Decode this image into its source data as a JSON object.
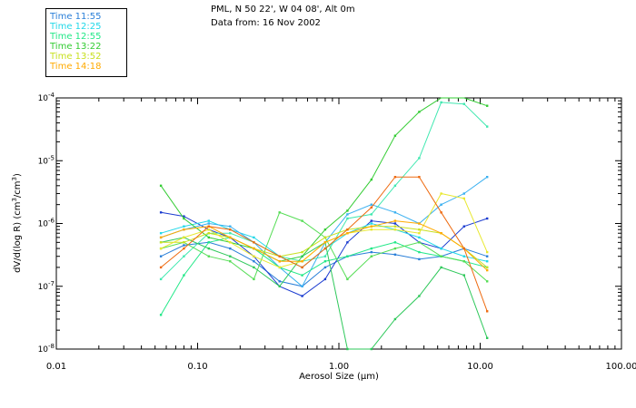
{
  "header": {
    "site": "PML, N 50 22', W 04 08', Alt 0m",
    "date": "Data from: 16 Nov 2002"
  },
  "chart_data": {
    "type": "line",
    "title": "PML, N 50 22', W 04 08', Alt 0m",
    "subtitle": "Data from: 16 Nov 2002",
    "xlabel": "Aerosol Size (µm)",
    "ylabel_parts": {
      "pre": "dV/d(log R)  (cm",
      "sup1": "3",
      "mid": "/cm",
      "sup2": "3",
      "post": ")"
    },
    "xscale": "log",
    "yscale": "log",
    "xlim": [
      0.01,
      100
    ],
    "ylim": [
      1e-08,
      0.0001
    ],
    "x_ticks": [
      {
        "value": 0.01,
        "label": "0.01"
      },
      {
        "value": 0.1,
        "label": "0.10"
      },
      {
        "value": 1,
        "label": "1.00"
      },
      {
        "value": 10,
        "label": "10.00"
      },
      {
        "value": 100,
        "label": "100.00"
      }
    ],
    "y_ticks": [
      {
        "value": 1e-08,
        "mant": "10",
        "exp": "-8"
      },
      {
        "value": 1e-07,
        "mant": "10",
        "exp": "-7"
      },
      {
        "value": 1e-06,
        "mant": "10",
        "exp": "-6"
      },
      {
        "value": 1e-05,
        "mant": "10",
        "exp": "-5"
      },
      {
        "value": 0.0001,
        "mant": "10",
        "exp": "-4"
      }
    ],
    "x": [
      0.055,
      0.08,
      0.12,
      0.17,
      0.25,
      0.38,
      0.55,
      0.8,
      1.15,
      1.7,
      2.5,
      3.7,
      5.3,
      7.7,
      11.2
    ],
    "legend": [
      {
        "label": "Time 11:55",
        "color": "#2a7fd8"
      },
      {
        "label": "Time 12:25",
        "color": "#22d8e8"
      },
      {
        "label": "Time 12:55",
        "color": "#22e888"
      },
      {
        "label": "Time 13:22",
        "color": "#33cc33"
      },
      {
        "label": "Time 13:52",
        "color": "#c8e020"
      },
      {
        "label": "Time 14:18",
        "color": "#ffaa00"
      }
    ],
    "series": [
      {
        "name": "Time 11:55",
        "color": "#2a7fd8",
        "values": [
          3e-07,
          4.5e-07,
          5e-07,
          4e-07,
          2.5e-07,
          1.2e-07,
          1e-07,
          2e-07,
          3e-07,
          3.5e-07,
          3.2e-07,
          2.7e-07,
          3e-07,
          4e-07,
          3e-07
        ]
      },
      {
        "name": "Time 11:55",
        "color": "#1c3cd0",
        "values": [
          1.5e-06,
          1.3e-06,
          8e-07,
          6e-07,
          3e-07,
          1e-07,
          7e-08,
          1.3e-07,
          5e-07,
          1.1e-06,
          1e-06,
          5e-07,
          4e-07,
          9e-07,
          1.2e-06
        ]
      },
      {
        "name": "Time 12:25",
        "color": "#22d8e8",
        "values": [
          7e-07,
          9e-07,
          1.1e-06,
          8e-07,
          6e-07,
          3e-07,
          2e-07,
          4e-07,
          7e-07,
          1e-06,
          8e-07,
          6e-07,
          4e-07,
          3e-07,
          2.5e-07
        ]
      },
      {
        "name": "Time 12:25",
        "color": "#3ab0f0",
        "values": [
          6e-07,
          8e-07,
          1e-06,
          9e-07,
          5e-07,
          2e-07,
          1e-07,
          5e-07,
          1.4e-06,
          2e-06,
          1.5e-06,
          1e-06,
          2e-06,
          3e-06,
          5.5e-06
        ]
      },
      {
        "name": "Time 12:55",
        "color": "#22e888",
        "values": [
          3.5e-08,
          1.5e-07,
          5e-07,
          6e-07,
          4e-07,
          2e-07,
          1.5e-07,
          2.5e-07,
          3e-07,
          4e-07,
          5e-07,
          3.5e-07,
          3e-07,
          2.5e-07,
          2e-07
        ]
      },
      {
        "name": "Time 12:55",
        "color": "#40e8b0",
        "values": [
          1.3e-07,
          3e-07,
          7e-07,
          7e-07,
          5e-07,
          3e-07,
          2.5e-07,
          3e-07,
          1.2e-06,
          1.4e-06,
          4e-06,
          1.1e-05,
          8.5e-05,
          8e-05,
          3.5e-05
        ]
      },
      {
        "name": "Time 13:22",
        "color": "#33cc33",
        "values": [
          4e-06,
          1.2e-06,
          6e-07,
          5e-07,
          4e-07,
          2.5e-07,
          3e-07,
          8e-07,
          1.6e-06,
          5e-06,
          2.5e-05,
          6e-05,
          0.00011,
          0.000105,
          7.5e-05
        ]
      },
      {
        "name": "Time 13:22",
        "color": "#55dd55",
        "values": [
          4e-07,
          5e-07,
          3e-07,
          2.5e-07,
          1.3e-07,
          1.5e-06,
          1.1e-06,
          6e-07,
          1.3e-07,
          3e-07,
          4e-07,
          5e-07,
          3e-07,
          2.5e-07,
          1.2e-07
        ]
      },
      {
        "name": "Time 13:22",
        "color": "#2ec85a",
        "values": [
          5e-07,
          6e-07,
          4e-07,
          3e-07,
          2e-07,
          1e-07,
          3e-07,
          5e-07,
          1e-08,
          1e-08,
          3e-08,
          7e-08,
          2e-07,
          1.5e-07,
          1.5e-08
        ]
      },
      {
        "name": "Time 13:52",
        "color": "#c8e020",
        "values": [
          5e-07,
          5e-07,
          7e-07,
          6e-07,
          4e-07,
          3e-07,
          3.5e-07,
          6e-07,
          8e-07,
          9e-07,
          9e-07,
          8e-07,
          7e-07,
          4e-07,
          2e-07
        ]
      },
      {
        "name": "Time 13:52",
        "color": "#e8e830",
        "values": [
          4e-07,
          6e-07,
          8e-07,
          5e-07,
          3e-07,
          2e-07,
          2.5e-07,
          5e-07,
          7e-07,
          8e-07,
          8e-07,
          7e-07,
          3e-06,
          2.5e-06,
          3.5e-07
        ]
      },
      {
        "name": "Time 14:18",
        "color": "#ffaa00",
        "values": [
          6e-07,
          8e-07,
          9e-07,
          6e-07,
          4e-07,
          2.5e-07,
          2.5e-07,
          5e-07,
          7e-07,
          9e-07,
          1.1e-06,
          1e-06,
          7e-07,
          4e-07,
          1.8e-07
        ]
      },
      {
        "name": "Time 14:18",
        "color": "#ee6a10",
        "values": [
          2e-07,
          4e-07,
          9e-07,
          8e-07,
          5e-07,
          3e-07,
          2e-07,
          4e-07,
          8e-07,
          1.8e-06,
          5.5e-06,
          5.5e-06,
          1.5e-06,
          4e-07,
          4e-08
        ]
      }
    ]
  }
}
